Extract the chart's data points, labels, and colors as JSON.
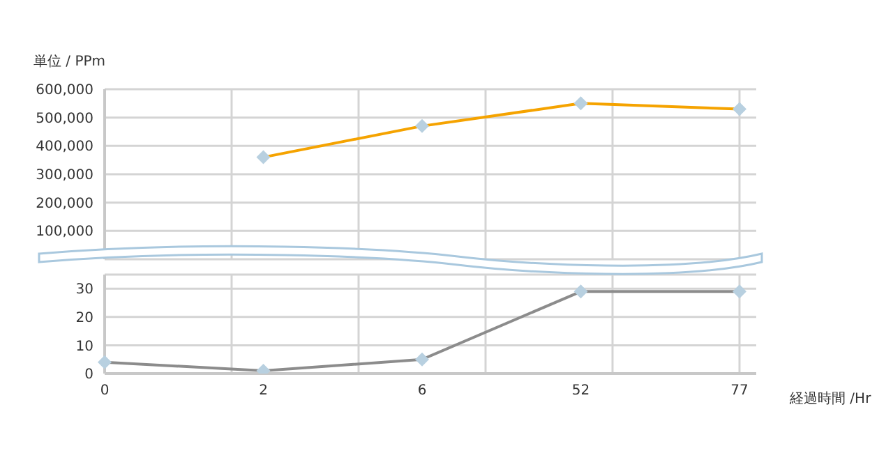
{
  "chart_data": [
    {
      "type": "line",
      "ylabel": "単位 / PPm",
      "categories": [
        "0",
        "2",
        "6",
        "52",
        "77"
      ],
      "series": [
        {
          "color": "#f5a300",
          "values": [
            null,
            360000,
            470000,
            550000,
            530000
          ]
        }
      ],
      "ylim": [
        0,
        600000
      ],
      "yticks": [
        {
          "value": 100000,
          "label": "100,000"
        },
        {
          "value": 200000,
          "label": "200,000"
        },
        {
          "value": 300000,
          "label": "300,000"
        },
        {
          "value": 400000,
          "label": "400,000"
        },
        {
          "value": 500000,
          "label": "500,000"
        },
        {
          "value": 600000,
          "label": "600,000"
        }
      ],
      "tick_labels": "y",
      "grid": true,
      "marker": "diamond",
      "line_style": "solid"
    },
    {
      "type": "line",
      "xlabel": "経過時間 /Hr",
      "categories": [
        "0",
        "2",
        "6",
        "52",
        "77"
      ],
      "series": [
        {
          "color": "#8c8c8c",
          "values": [
            4,
            1,
            5,
            29,
            29
          ]
        }
      ],
      "ylim": [
        0,
        35
      ],
      "yticks": [
        0,
        10,
        20,
        30
      ],
      "grid": true,
      "marker": "diamond",
      "line_style": "solid"
    }
  ]
}
